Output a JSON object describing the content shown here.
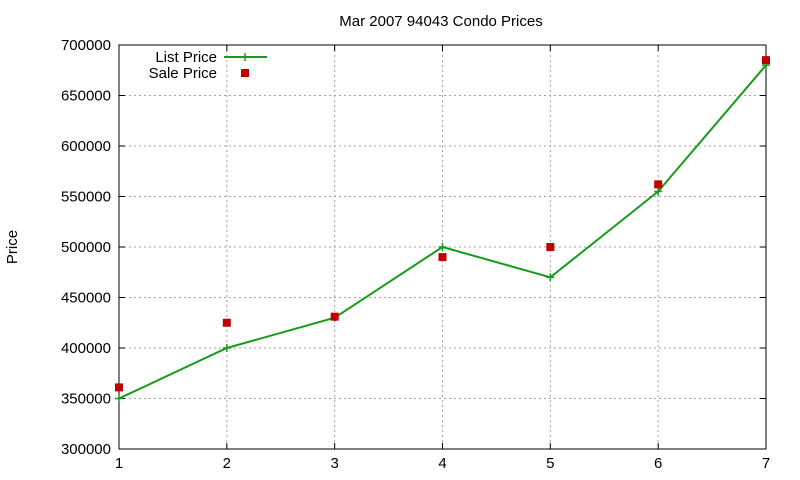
{
  "chart_data": {
    "type": "line",
    "title": "Mar 2007 94043 Condo Prices",
    "xlabel": "",
    "ylabel": "Price",
    "xlim": [
      1,
      7
    ],
    "ylim": [
      300000,
      700000
    ],
    "x_ticks": [
      "1",
      "2",
      "3",
      "4",
      "5",
      "6",
      "7"
    ],
    "y_ticks": [
      "300000",
      "350000",
      "400000",
      "450000",
      "500000",
      "550000",
      "600000",
      "650000",
      "700000"
    ],
    "grid": true,
    "legend_position": "top-left",
    "series": [
      {
        "name": "List Price",
        "style": "line+cross",
        "color": "#1a9a1a",
        "x": [
          1,
          2,
          3,
          4,
          5,
          6,
          7
        ],
        "y": [
          350000,
          400000,
          430000,
          500000,
          470000,
          555000,
          680000
        ]
      },
      {
        "name": "Sale Price",
        "style": "square-points",
        "color": "#c00000",
        "x": [
          1,
          2,
          3,
          4,
          5,
          6,
          7
        ],
        "y": [
          361000,
          425000,
          431000,
          490000,
          500000,
          562000,
          685000
        ]
      }
    ]
  }
}
